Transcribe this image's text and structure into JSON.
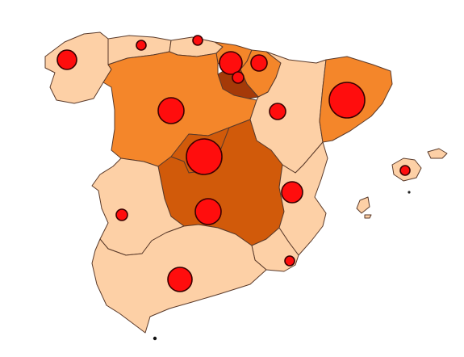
{
  "map": {
    "type": "choropleth-with-proportional-symbols",
    "palette": {
      "class_1": "#fdd0a6",
      "class_2": "#f4862a",
      "class_3": "#d15a0a",
      "class_4": "#a53a08",
      "border": "#5a3a2a",
      "bubble_fill": "#ff0d0d",
      "bubble_stroke": "#3a0000"
    },
    "regions": [
      {
        "id": "galicia",
        "class": 1,
        "symbol_size": 2
      },
      {
        "id": "asturias",
        "class": 1,
        "symbol_size": 1
      },
      {
        "id": "cantabria",
        "class": 1,
        "symbol_size": 1
      },
      {
        "id": "pais-vasco",
        "class": 2,
        "symbol_size": 3
      },
      {
        "id": "navarra",
        "class": 2,
        "symbol_size": 2
      },
      {
        "id": "la-rioja",
        "class": 4,
        "symbol_size": 1
      },
      {
        "id": "aragon",
        "class": 1,
        "symbol_size": 2
      },
      {
        "id": "cataluna",
        "class": 2,
        "symbol_size": 5
      },
      {
        "id": "castilla-y-leon",
        "class": 2,
        "symbol_size": 3
      },
      {
        "id": "madrid",
        "class": 3,
        "symbol_size": 5
      },
      {
        "id": "castilla-la-mancha",
        "class": 3,
        "symbol_size": 3
      },
      {
        "id": "comunidad-valenciana",
        "class": 1,
        "symbol_size": 2
      },
      {
        "id": "extremadura",
        "class": 1,
        "symbol_size": 1
      },
      {
        "id": "andalucia",
        "class": 1,
        "symbol_size": 2
      },
      {
        "id": "murcia",
        "class": 1,
        "symbol_size": 1
      },
      {
        "id": "baleares",
        "class": 1,
        "symbol_size": 1
      }
    ]
  }
}
